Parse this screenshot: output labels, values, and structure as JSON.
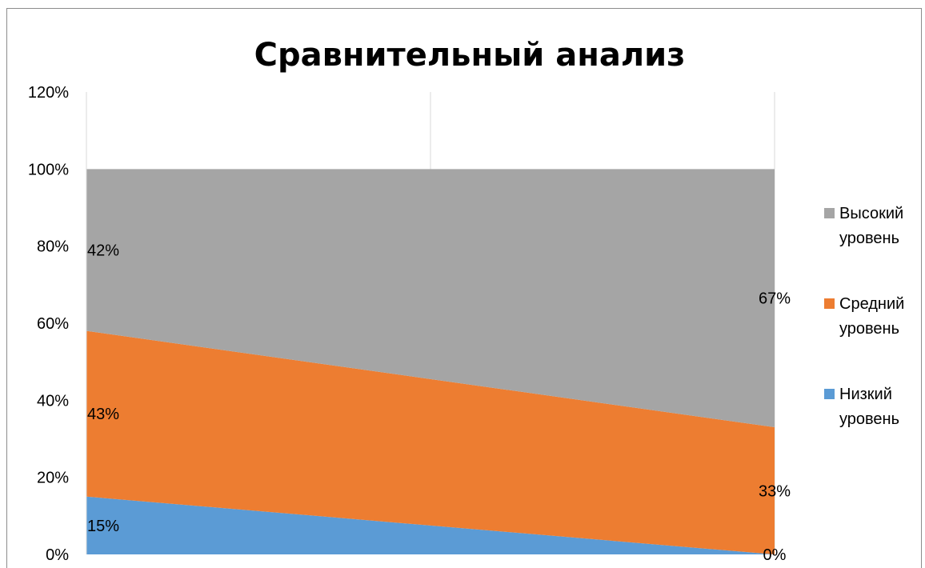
{
  "chart_data": {
    "type": "area",
    "stacked": true,
    "title": "Сравнительный анализ",
    "xlabel": "",
    "ylabel": "",
    "categories": [
      "",
      "",
      ""
    ],
    "ylim": [
      0,
      1.2
    ],
    "y_ticks": [
      "0%",
      "20%",
      "40%",
      "60%",
      "80%",
      "100%",
      "120%"
    ],
    "grid": "vertical",
    "legend_position": "right",
    "series": [
      {
        "name": "Низкий уровень",
        "color": "#5B9BD5",
        "values": [
          0.15,
          0.075,
          0.0
        ],
        "labels": [
          "15%",
          "",
          "0%"
        ]
      },
      {
        "name": "Средний уровень",
        "color": "#ED7D31",
        "values": [
          0.43,
          0.38,
          0.33
        ],
        "labels": [
          "43%",
          "",
          "33%"
        ]
      },
      {
        "name": "Высокий уровень",
        "color": "#A5A5A5",
        "values": [
          0.42,
          0.545,
          0.67
        ],
        "labels": [
          "42%",
          "",
          "67%"
        ]
      }
    ]
  }
}
